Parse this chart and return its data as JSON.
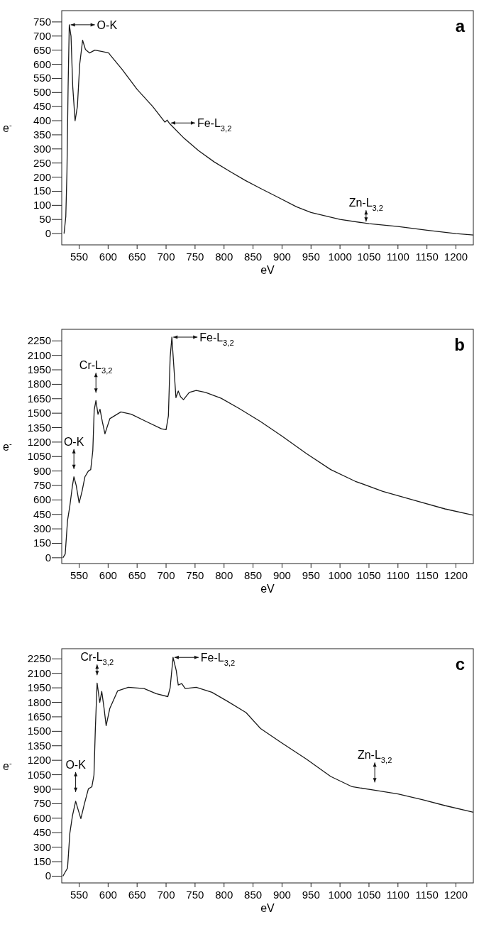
{
  "chart_data": [
    {
      "type": "line",
      "title": "a",
      "xlabel": "eV",
      "ylabel": "e$^{-}$",
      "xlim": [
        520,
        1230
      ],
      "ylim": [
        -40,
        790
      ],
      "xticks": [
        550,
        600,
        650,
        700,
        750,
        800,
        850,
        900,
        950,
        1000,
        1050,
        1100,
        1150,
        1200
      ],
      "yticks": [
        0,
        50,
        100,
        150,
        200,
        250,
        300,
        350,
        400,
        450,
        500,
        550,
        600,
        650,
        700,
        750
      ],
      "grid": false,
      "marker": "none",
      "line_style": "solid",
      "series": [
        {
          "color": "#1a1a1a",
          "x": [
            524,
            527,
            529,
            531,
            533,
            536,
            539,
            543,
            547,
            551,
            556,
            561,
            568,
            577,
            590,
            601,
            604,
            624,
            650,
            677,
            698,
            702,
            706,
            730,
            756,
            783,
            811,
            837,
            863,
            889,
            925,
            950,
            1000,
            1050,
            1100,
            1150,
            1200,
            1230
          ],
          "values": [
            0,
            60,
            219,
            520,
            740,
            700,
            520,
            400,
            450,
            600,
            685,
            652,
            640,
            650,
            645,
            640,
            632,
            582,
            511,
            450,
            395,
            402,
            390,
            340,
            294,
            254,
            219,
            188,
            160,
            133,
            95,
            75,
            50,
            35,
            25,
            12,
            0,
            -5
          ]
        }
      ],
      "annotations": [
        {
          "text": "O-K",
          "x": 533,
          "y": 740
        },
        {
          "text": "Fe-L$_{3,2}$",
          "x": 706,
          "y": 392
        },
        {
          "text": "Zn-L$_{3,2}$",
          "x": 1045,
          "y": 35
        }
      ]
    },
    {
      "type": "line",
      "title": "b",
      "xlabel": "eV",
      "ylabel": "e$^{-}$",
      "xlim": [
        520,
        1230
      ],
      "ylim": [
        -60,
        2370
      ],
      "xticks": [
        550,
        600,
        650,
        700,
        750,
        800,
        850,
        900,
        950,
        1000,
        1050,
        1100,
        1150,
        1200
      ],
      "yticks": [
        0,
        150,
        300,
        450,
        600,
        750,
        900,
        1050,
        1200,
        1350,
        1500,
        1650,
        1800,
        1950,
        2100,
        2250
      ],
      "grid": false,
      "marker": "none",
      "line_style": "solid",
      "series": [
        {
          "color": "#1a1a1a",
          "x": [
            522,
            526,
            530,
            534,
            538.5,
            541,
            545,
            550,
            555,
            560,
            566,
            570,
            573.6,
            576,
            579,
            582.5,
            586,
            590,
            594.5,
            603,
            622,
            640,
            666,
            692,
            700,
            704,
            707,
            710,
            713,
            717,
            721,
            725,
            730,
            740,
            752,
            768,
            795,
            826,
            863,
            900,
            942,
            984,
            1026,
            1074,
            1127,
            1181,
            1230
          ],
          "values": [
            0,
            39,
            387,
            538,
            749,
            840,
            749,
            568,
            689,
            840,
            900,
            915,
            1111,
            1534,
            1631,
            1489,
            1540,
            1413,
            1286,
            1443,
            1513,
            1489,
            1413,
            1338,
            1329,
            1473,
            2078,
            2289,
            2017,
            1661,
            1730,
            1670,
            1640,
            1715,
            1736,
            1715,
            1655,
            1549,
            1413,
            1262,
            1081,
            915,
            794,
            689,
            598,
            507,
            441
          ]
        }
      ],
      "annotations": [
        {
          "text": "O-K",
          "x": 541,
          "y": 840
        },
        {
          "text": "Cr-L$_{3,2}$",
          "x": 579,
          "y": 1631
        },
        {
          "text": "Fe-L$_{3,2}$",
          "x": 710,
          "y": 2289
        }
      ]
    },
    {
      "type": "line",
      "title": "c",
      "xlabel": "eV",
      "ylabel": "e$^{-}$",
      "xlim": [
        520,
        1230
      ],
      "ylim": [
        -70,
        2355
      ],
      "xticks": [
        550,
        600,
        650,
        700,
        750,
        800,
        850,
        900,
        950,
        1000,
        1050,
        1100,
        1150,
        1200
      ],
      "yticks": [
        0,
        150,
        300,
        450,
        600,
        750,
        900,
        1050,
        1200,
        1350,
        1500,
        1650,
        1800,
        1950,
        2100,
        2250
      ],
      "grid": false,
      "marker": "none",
      "line_style": "solid",
      "series": [
        {
          "color": "#1a1a1a",
          "x": [
            522,
            530,
            534,
            538.5,
            544,
            548.4,
            553,
            559,
            566,
            572,
            575.6,
            578,
            581,
            585.6,
            589,
            593,
            596.6,
            603,
            616.5,
            635,
            662,
            683,
            703,
            707,
            712,
            717.5,
            721,
            727,
            733,
            752,
            779,
            805,
            838,
            863,
            900,
            942,
            984,
            1021,
            1060,
            1100,
            1143,
            1181,
            1230
          ],
          "values": [
            0,
            84,
            445,
            626,
            776,
            686,
            596,
            746,
            905,
            926,
            1047,
            1528,
            2000,
            1799,
            1913,
            1738,
            1558,
            1738,
            1919,
            1955,
            1943,
            1889,
            1859,
            1949,
            2265,
            2130,
            1979,
            1994,
            1943,
            1955,
            1904,
            1814,
            1694,
            1528,
            1378,
            1212,
            1032,
            926,
            890,
            851,
            791,
            731,
            662
          ]
        }
      ],
      "annotations": [
        {
          "text": "O-K",
          "x": 544,
          "y": 776
        },
        {
          "text": "Cr-L$_{3,2}$",
          "x": 581,
          "y": 2000
        },
        {
          "text": "Fe-L$_{3,2}$",
          "x": 712,
          "y": 2265
        },
        {
          "text": "Zn-L$_{3,2}$",
          "x": 1060,
          "y": 890
        }
      ]
    }
  ]
}
